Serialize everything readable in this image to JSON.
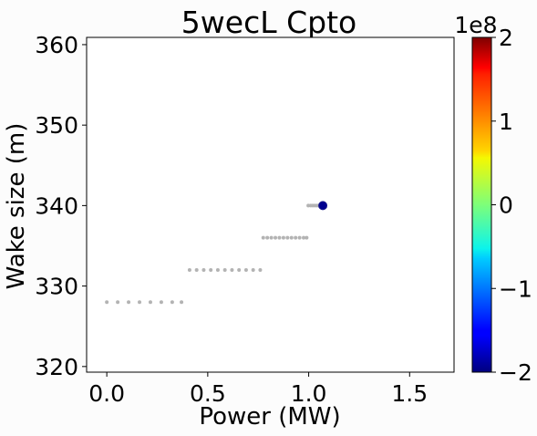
{
  "chart_data": {
    "type": "scatter",
    "title": "5wecL Cpto",
    "xlabel": "Power (MW)",
    "ylabel": "Wake size (m)",
    "xlim": [
      -0.1,
      1.72
    ],
    "ylim": [
      319.3,
      360.9
    ],
    "xticks": [
      0.0,
      0.5,
      1.0,
      1.5
    ],
    "xtick_labels": [
      "0.0",
      "0.5",
      "1.0",
      "1.5"
    ],
    "yticks": [
      320,
      330,
      340,
      350,
      360
    ],
    "ytick_labels": [
      "320",
      "330",
      "340",
      "350",
      "360"
    ],
    "grid": false,
    "series": [
      {
        "role": "background",
        "color": "#b3b3b3",
        "x": [
          0.0,
          0.054,
          0.108,
          0.162,
          0.216,
          0.27,
          0.324,
          0.37,
          0.41,
          0.445,
          0.48,
          0.515,
          0.55,
          0.585,
          0.62,
          0.655,
          0.69,
          0.725,
          0.76,
          0.775,
          0.795,
          0.815,
          0.835,
          0.855,
          0.875,
          0.895,
          0.915,
          0.935,
          0.955,
          0.975,
          0.99,
          0.998,
          1.01,
          1.02,
          1.03,
          1.04,
          1.05
        ],
        "y": [
          328,
          328,
          328,
          328,
          328,
          328,
          328,
          328,
          332,
          332,
          332,
          332,
          332,
          332,
          332,
          332,
          332,
          332,
          332,
          336,
          336,
          336,
          336,
          336,
          336,
          336,
          336,
          336,
          336,
          336,
          336,
          340,
          340,
          340,
          340,
          340,
          340
        ]
      },
      {
        "role": "highlight",
        "x": [
          1.07
        ],
        "y": [
          340
        ],
        "c": [
          -2.0
        ],
        "color": "#00008f",
        "edgecolor": "#1a1a8c"
      }
    ],
    "colorbar": {
      "colormap": "jet",
      "range": [
        -2,
        2
      ],
      "ticks": [
        -2,
        -1,
        0,
        1,
        2
      ],
      "tick_labels": [
        "−2",
        "−1",
        "0",
        "1",
        "2"
      ],
      "offset_label": "1e8"
    }
  }
}
